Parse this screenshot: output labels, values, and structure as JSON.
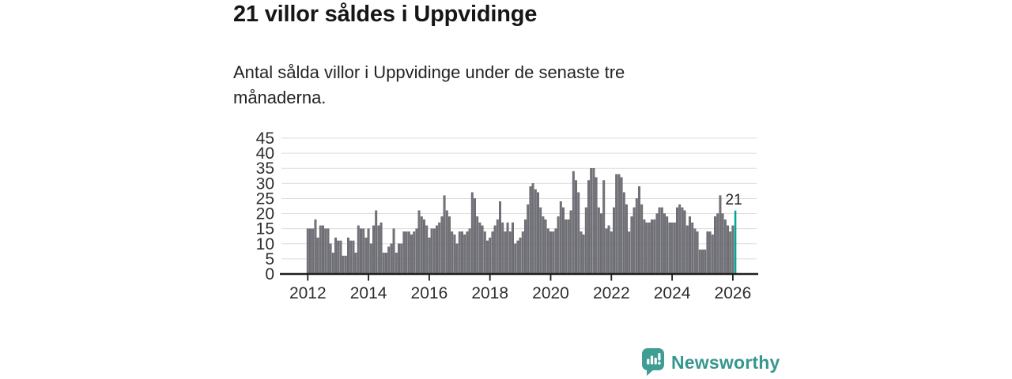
{
  "header": {
    "title": "21 villor såldes i Uppvidinge",
    "subtitle_line1": "Antal sålda villor i Uppvidinge under de senaste tre",
    "subtitle_line2": "månaderna."
  },
  "chart_data": {
    "type": "bar",
    "title": "21 villor såldes i Uppvidinge",
    "subtitle": "Antal sålda villor i Uppvidinge under de senaste tre månaderna.",
    "x_start_month": "2012-01",
    "x_end_month": "2026-02",
    "x_tick_labels": [
      "2012",
      "2014",
      "2016",
      "2018",
      "2020",
      "2022",
      "2024",
      "2026"
    ],
    "y_ticks": [
      0,
      5,
      10,
      15,
      20,
      25,
      30,
      35,
      40,
      45
    ],
    "ylim": [
      0,
      45
    ],
    "grid": true,
    "bar_color": "#73737a",
    "bar_edge_color": "#515158",
    "highlight_color": "#00a79b",
    "axis_color": "#1e1e1e",
    "grid_color": "#dcdcdc",
    "label_color": "#2e2e2e",
    "annotation": {
      "text": "21",
      "index": 169
    },
    "series": [
      {
        "name": "Sålda villor",
        "values_by_year": {
          "2012": [
            15,
            15,
            15,
            18,
            12,
            16,
            16,
            15,
            15,
            10,
            7,
            12
          ],
          "2013": [
            11,
            11,
            6,
            6,
            12,
            11,
            11,
            7,
            16,
            15,
            15,
            12
          ],
          "2014": [
            15,
            10,
            16,
            21,
            16,
            17,
            7,
            7,
            9,
            10,
            15,
            7
          ],
          "2015": [
            10,
            10,
            14,
            14,
            14,
            13,
            14,
            15,
            21,
            19,
            18,
            16
          ],
          "2016": [
            12,
            15,
            15,
            16,
            17,
            19,
            26,
            21,
            19,
            14,
            13,
            10
          ],
          "2017": [
            14,
            14,
            13,
            14,
            15,
            27,
            25,
            19,
            17,
            16,
            14,
            11
          ],
          "2018": [
            12,
            14,
            16,
            18,
            24,
            17,
            14,
            17,
            14,
            17,
            10,
            11
          ],
          "2019": [
            12,
            14,
            18,
            23,
            29,
            30,
            28,
            27,
            22,
            19,
            18,
            15
          ],
          "2020": [
            14,
            14,
            15,
            19,
            24,
            22,
            18,
            18,
            21,
            34,
            31,
            27
          ],
          "2021": [
            14,
            13,
            22,
            31,
            35,
            35,
            32,
            22,
            20,
            31,
            15,
            16
          ],
          "2022": [
            14,
            22,
            33,
            33,
            32,
            27,
            23,
            14,
            19,
            22,
            25,
            29
          ],
          "2023": [
            23,
            18,
            17,
            17,
            18,
            18,
            20,
            22,
            22,
            20,
            19,
            17
          ],
          "2024": [
            17,
            17,
            22,
            23,
            22,
            21,
            16,
            19,
            17,
            15,
            14,
            8
          ],
          "2025": [
            8,
            8,
            14,
            14,
            13,
            19,
            20,
            26,
            20,
            18,
            16,
            14
          ],
          "2026": [
            16,
            21
          ]
        }
      }
    ]
  },
  "footer": {
    "brand": "Newsworthy",
    "brand_color": "#35978e",
    "icon": "newsworthy-speech-bubble-barchart-icon",
    "icon_color": "#3f9d94"
  }
}
